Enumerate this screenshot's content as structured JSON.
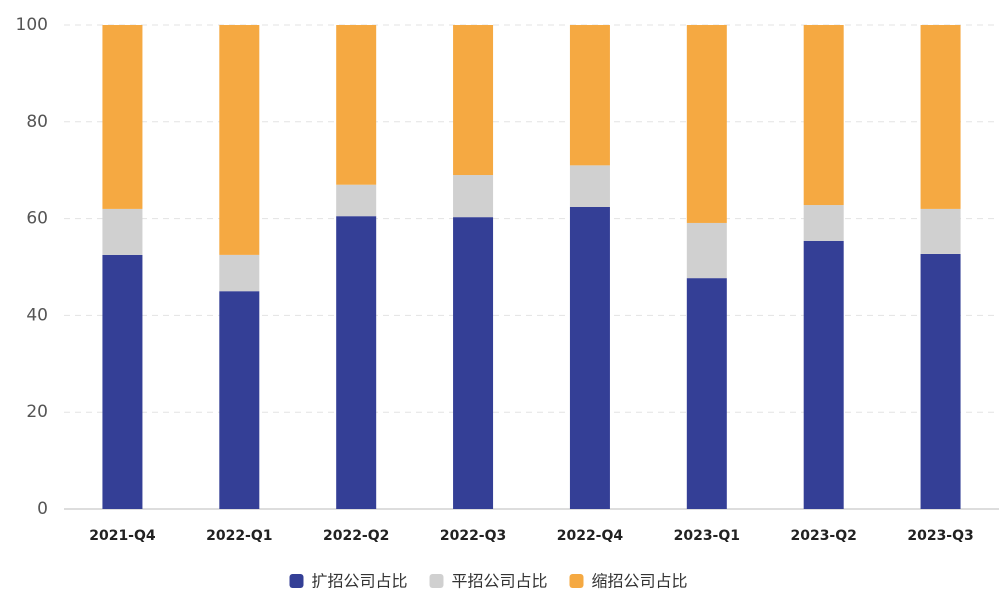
{
  "chart_data": {
    "type": "stacked_bar",
    "categories": [
      "2021-Q4",
      "2022-Q1",
      "2022-Q2",
      "2022-Q3",
      "2022-Q4",
      "2023-Q1",
      "2023-Q2",
      "2023-Q3"
    ],
    "series": [
      {
        "name": "扩招公司占比",
        "color": "#343f96",
        "values": [
          52.5,
          45.0,
          60.5,
          60.3,
          62.4,
          47.7,
          55.4,
          52.7
        ]
      },
      {
        "name": "平招公司占比",
        "color": "#d0d0d0",
        "values": [
          9.5,
          7.5,
          6.5,
          8.7,
          8.6,
          11.4,
          7.4,
          9.3
        ]
      },
      {
        "name": "缩招公司占比",
        "color": "#f5a942",
        "values": [
          38.0,
          47.5,
          33.0,
          31.0,
          29.0,
          40.9,
          37.2,
          38.0
        ]
      }
    ],
    "ylim": [
      0,
      100
    ],
    "yticks": [
      0,
      20,
      40,
      60,
      80,
      100
    ],
    "grid": true,
    "legend": "bottom"
  }
}
